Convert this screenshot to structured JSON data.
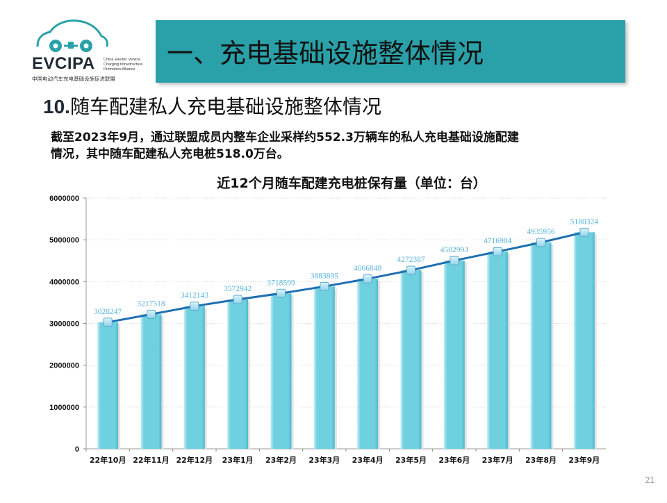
{
  "logo": {
    "wordmark": "EVCIPA",
    "english_lines": [
      "China Electric Vehicle",
      "Charging Infrastructure",
      "Promotion Alliance"
    ],
    "chinese": "中国电动汽车充电基础设施促进联盟",
    "color": "#2aa1a9"
  },
  "header": {
    "title": "一、充电基础设施整体情况",
    "banner_color": "#2aa1a9"
  },
  "section": {
    "number": "10.",
    "title": "随车配建私人充电基础设施整体情况"
  },
  "summary": {
    "line1": "截至2023年9月，通过联盟成员内整车企业采样约552.3万辆车的私人充电基础设施配建",
    "line2": "情况，其中随车配建私人充电桩518.0万台。"
  },
  "chart_data": {
    "type": "bar",
    "title": "近12个月随车配建充电桩保有量（单位：台）",
    "categories": [
      "22年10月",
      "22年11月",
      "22年12月",
      "23年1月",
      "23年2月",
      "23年3月",
      "23年4月",
      "23年5月",
      "23年6月",
      "23年7月",
      "23年8月",
      "23年9月"
    ],
    "series": [
      {
        "values": [
          3028247,
          3217518,
          3412143,
          3572942,
          3718599,
          3883895,
          4066848,
          4272387,
          4502993,
          4716984,
          4935956,
          5180324
        ]
      }
    ],
    "trend_line": true,
    "y_ticks": [
      "0",
      "1000000",
      "2000000",
      "3000000",
      "4000000",
      "5000000",
      "6000000"
    ],
    "ylim": [
      0,
      6000000
    ],
    "grid": true,
    "colors": {
      "bar": "#6fd0e0",
      "bar_light": "#c4eef5",
      "line": "#1f6fb0",
      "label": "#5ab4d8"
    }
  },
  "footer": {
    "page_number": "21"
  }
}
